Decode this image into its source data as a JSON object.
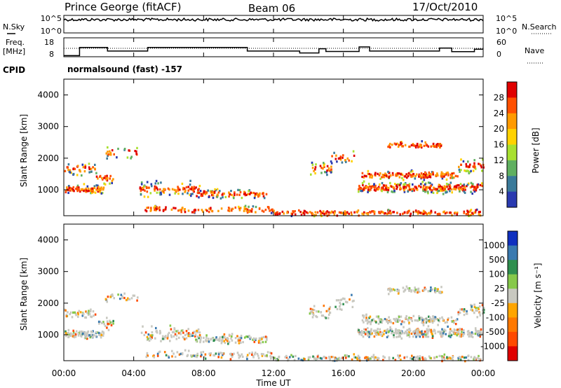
{
  "header": {
    "station": "Prince George (fitACF)",
    "beam": "Beam 06",
    "date": "17/Oct/2010"
  },
  "side_labels": {
    "nsky": "N.Sky",
    "nsearch": "N.Search",
    "freq_line1": "Freq.",
    "freq_line2": "[MHz]",
    "nave": "Nave",
    "cpid": "CPID"
  },
  "program": "normalsound (fast) -157",
  "chart_data": [
    {
      "type": "line",
      "name": "noise",
      "y_ticks": [
        "10^5",
        "10^0"
      ],
      "y_ticks_right": [
        "10^5",
        "10^0"
      ],
      "x_range_hours": [
        0,
        24
      ]
    },
    {
      "type": "line",
      "name": "frequency_nave",
      "y_ticks": [
        "18",
        "8"
      ],
      "y_ticks_right": [
        "60",
        "0"
      ],
      "freq_steps": [
        {
          "t": 0.0,
          "f": 8.6
        },
        {
          "t": 0.9,
          "f": 12.9
        },
        {
          "t": 2.5,
          "f": 11.0
        },
        {
          "t": 4.8,
          "f": 12.9
        },
        {
          "t": 10.5,
          "f": 11.0
        },
        {
          "t": 13.5,
          "f": 10.0
        },
        {
          "t": 14.6,
          "f": 12.2
        },
        {
          "t": 15.0,
          "f": 10.8
        },
        {
          "t": 16.9,
          "f": 13.2
        },
        {
          "t": 17.5,
          "f": 11.0
        },
        {
          "t": 21.5,
          "f": 12.6
        },
        {
          "t": 22.2,
          "f": 10.7
        },
        {
          "t": 23.5,
          "f": 12.0
        }
      ]
    },
    {
      "type": "heatmap",
      "name": "power",
      "ylabel": "Slant Range [km]",
      "ylim": [
        180,
        4500
      ],
      "y_ticks": [
        1000,
        2000,
        3000,
        4000
      ],
      "colorbar_label": "Power [dB]",
      "colorbar_ticks": [
        "28",
        "24",
        "20",
        "16",
        "12",
        "8",
        "4"
      ],
      "colorbar_colors": [
        "#e00000",
        "#ff5000",
        "#ff9a00",
        "#ffd200",
        "#a8e030",
        "#60b060",
        "#3a7a9a",
        "#2a3ab0"
      ]
    },
    {
      "type": "heatmap",
      "name": "velocity",
      "ylabel": "Slant Range [km]",
      "ylim": [
        180,
        4500
      ],
      "y_ticks": [
        1000,
        2000,
        3000,
        4000
      ],
      "colorbar_label": "Velocity [m s⁻¹]",
      "colorbar_ticks": [
        "1000",
        "500",
        "100",
        "25",
        "-25",
        "-100",
        "-500",
        "-1000"
      ],
      "colorbar_colors": [
        "#1030c0",
        "#3a7ab0",
        "#2f8f4f",
        "#86c84a",
        "#c8c8c0",
        "#ffa500",
        "#ff7800",
        "#ff4a00",
        "#e00000"
      ],
      "x_ticks": [
        "00:00",
        "04:00",
        "08:00",
        "12:00",
        "16:00",
        "20:00",
        "00:00"
      ],
      "xlabel": "Time UT"
    }
  ]
}
